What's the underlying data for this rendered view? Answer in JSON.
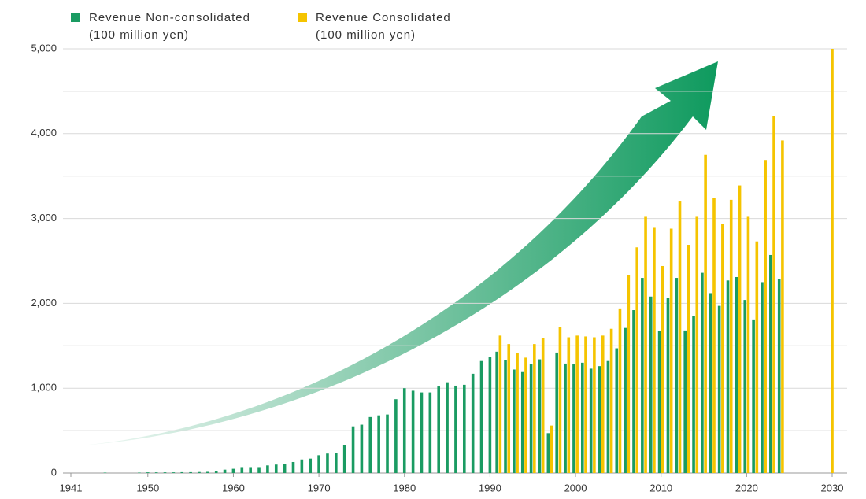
{
  "chart_data": {
    "type": "bar",
    "legend_unit": "(100 million yen)",
    "xlim": [
      1941,
      2030
    ],
    "xticks": [
      1941,
      1950,
      1960,
      1970,
      1980,
      1990,
      2000,
      2010,
      2020,
      2030
    ],
    "ylim": [
      0,
      5000
    ],
    "yticks": [
      0,
      {
        "value": 1000,
        "label": "1,000"
      },
      {
        "value": 2000,
        "label": "2,000"
      },
      {
        "value": 3000,
        "label": "3,000"
      },
      {
        "value": 4000,
        "label": "4,000"
      },
      {
        "value": 5000,
        "label": "5,000"
      }
    ],
    "minor_yticks": [
      500,
      1500,
      2500,
      3500,
      4500
    ],
    "grid": true,
    "series": [
      {
        "name": "Revenue Non-consolidated",
        "color": "#1a9b62",
        "x": [
          1945,
          1949,
          1950,
          1951,
          1952,
          1953,
          1954,
          1955,
          1956,
          1957,
          1958,
          1959,
          1960,
          1961,
          1962,
          1963,
          1964,
          1965,
          1966,
          1967,
          1968,
          1969,
          1970,
          1971,
          1972,
          1973,
          1974,
          1975,
          1976,
          1977,
          1978,
          1979,
          1980,
          1981,
          1982,
          1983,
          1984,
          1985,
          1986,
          1987,
          1988,
          1989,
          1990,
          1991,
          1992,
          1993,
          1994,
          1995,
          1996,
          1997,
          1998,
          1999,
          2000,
          2001,
          2002,
          2003,
          2004,
          2005,
          2006,
          2007,
          2008,
          2009,
          2010,
          2011,
          2012,
          2013,
          2014,
          2015,
          2016,
          2017,
          2018,
          2019,
          2020,
          2021,
          2022,
          2023,
          2024
        ],
        "values": [
          5,
          5,
          8,
          8,
          8,
          8,
          10,
          10,
          12,
          14,
          20,
          40,
          50,
          70,
          70,
          70,
          90,
          100,
          110,
          130,
          160,
          170,
          210,
          230,
          240,
          330,
          550,
          570,
          660,
          680,
          690,
          870,
          1000,
          970,
          950,
          950,
          1020,
          1070,
          1030,
          1040,
          1170,
          1320,
          1370,
          1430,
          1330,
          1220,
          1190,
          1280,
          1340,
          470,
          1420,
          1290,
          1280,
          1300,
          1230,
          1260,
          1320,
          1470,
          1710,
          1920,
          2300,
          2080,
          1670,
          2060,
          2300,
          1680,
          1850,
          2360,
          2120,
          1970,
          2270,
          2310,
          2040,
          1810,
          2250,
          2570,
          2290
        ]
      },
      {
        "name": "Revenue Consolidated",
        "color": "#f5c400",
        "x": [
          1991,
          1992,
          1993,
          1994,
          1995,
          1996,
          1997,
          1998,
          1999,
          2000,
          2001,
          2002,
          2003,
          2004,
          2005,
          2006,
          2007,
          2008,
          2009,
          2010,
          2011,
          2012,
          2013,
          2014,
          2015,
          2016,
          2017,
          2018,
          2019,
          2020,
          2021,
          2022,
          2023,
          2024,
          2030
        ],
        "values": [
          1620,
          1520,
          1410,
          1360,
          1520,
          1590,
          560,
          1720,
          1600,
          1620,
          1610,
          1600,
          1620,
          1700,
          1940,
          2330,
          2660,
          3020,
          2890,
          2440,
          2880,
          3200,
          2690,
          3020,
          3750,
          3240,
          2940,
          3220,
          3390,
          3020,
          2730,
          3690,
          4210,
          3920,
          5000
        ]
      }
    ]
  }
}
